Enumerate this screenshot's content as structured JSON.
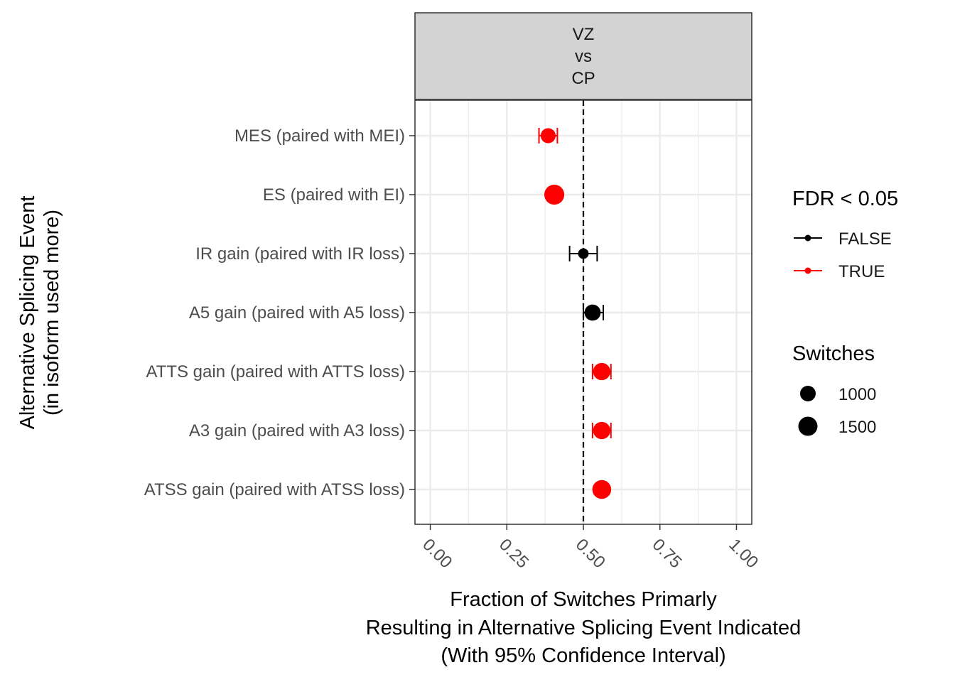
{
  "chart_data": {
    "type": "scatter",
    "facet_label_lines": [
      "VZ",
      "vs",
      "CP"
    ],
    "ylabel_lines": [
      "Alternative Splicing Event",
      "(in isoform used more)"
    ],
    "xlabel_lines": [
      "Fraction of Switches Primarly",
      "Resulting in Alternative Splicing Event Indicated",
      "(With 95% Confidence Interval)"
    ],
    "xlim": [
      -0.05,
      1.05
    ],
    "xticks": [
      0.0,
      0.25,
      0.5,
      0.75,
      1.0
    ],
    "xtick_labels": [
      "0.00",
      "0.25",
      "0.50",
      "0.75",
      "1.00"
    ],
    "reference_line_x": 0.5,
    "grid": true,
    "categories": [
      "MES (paired with MEI)",
      "ES (paired with EI)",
      "IR gain (paired with IR loss)",
      "A5 gain (paired with A5 loss)",
      "ATTS gain (paired with ATTS loss)",
      "A3 gain (paired with A3 loss)",
      "ATSS gain (paired with ATSS loss)"
    ],
    "points": [
      {
        "category": "MES (paired with MEI)",
        "x": 0.385,
        "ci": [
          0.355,
          0.415
        ],
        "switches": 950,
        "significant": true
      },
      {
        "category": "ES (paired with EI)",
        "x": 0.405,
        "ci": [
          0.395,
          0.415
        ],
        "switches": 1700,
        "significant": true
      },
      {
        "category": "IR gain (paired with IR loss)",
        "x": 0.5,
        "ci": [
          0.455,
          0.545
        ],
        "switches": 550,
        "significant": false
      },
      {
        "category": "A5 gain (paired with A5 loss)",
        "x": 0.53,
        "ci": [
          0.5,
          0.565
        ],
        "switches": 1100,
        "significant": false
      },
      {
        "category": "ATTS gain (paired with ATTS loss)",
        "x": 0.56,
        "ci": [
          0.53,
          0.59
        ],
        "switches": 1250,
        "significant": true
      },
      {
        "category": "A3 gain (paired with A3 loss)",
        "x": 0.56,
        "ci": [
          0.53,
          0.59
        ],
        "switches": 1250,
        "significant": true
      },
      {
        "category": "ATSS gain (paired with ATSS loss)",
        "x": 0.56,
        "ci": [
          0.55,
          0.57
        ],
        "switches": 1500,
        "significant": true
      }
    ],
    "legend": {
      "placement": "right",
      "color_title": "FDR < 0.05",
      "color_entries": [
        {
          "label": "FALSE",
          "color": "#000000"
        },
        {
          "label": "TRUE",
          "color": "#ff0000"
        }
      ],
      "size_title": "Switches",
      "size_entries": [
        {
          "label": "1000",
          "value": 1000
        },
        {
          "label": "1500",
          "value": 1500
        }
      ]
    },
    "colors": {
      "FALSE": "#000000",
      "TRUE": "#ff0000",
      "strip_fill": "#d3d3d3",
      "grid": "#ebebeb"
    }
  }
}
